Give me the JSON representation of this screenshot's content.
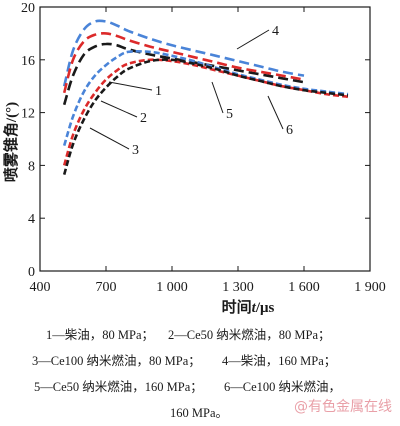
{
  "chart_data": {
    "type": "line",
    "xlabel_prefix": "时间",
    "xlabel_var": "t",
    "xlabel_unit": "/μs",
    "ylabel": "喷雾锥角/(°)",
    "xlim": [
      400,
      1900
    ],
    "ylim": [
      0,
      20
    ],
    "x_ticks": [
      400,
      700,
      1000,
      1300,
      1600,
      1900
    ],
    "x_tick_labels": [
      "400",
      "700",
      "1 000",
      "1 300",
      "1 600",
      "1 900"
    ],
    "y_ticks": [
      0,
      4,
      8,
      12,
      16,
      20
    ],
    "y_tick_labels": [
      "0",
      "4",
      "8",
      "12",
      "16",
      "20"
    ],
    "series": [
      {
        "name": "1",
        "color": "#1a1a1a",
        "style": "long-dash",
        "x": [
          510,
          550,
          600,
          650,
          700,
          750,
          800,
          900,
          1000,
          1100,
          1200,
          1300,
          1400,
          1500,
          1600
        ],
        "y": [
          12.6,
          14.8,
          16.4,
          17.0,
          17.2,
          17.1,
          16.8,
          16.4,
          16.1,
          15.8,
          15.5,
          15.2,
          14.9,
          14.6,
          14.3
        ]
      },
      {
        "name": "2",
        "color": "#4a84d8",
        "style": "dash",
        "x": [
          510,
          550,
          600,
          650,
          700,
          750,
          800,
          900,
          1000,
          1100,
          1200,
          1300,
          1400,
          1500,
          1600,
          1700,
          1800
        ],
        "y": [
          9.5,
          11.7,
          13.6,
          14.8,
          15.6,
          16.2,
          16.6,
          16.6,
          16.3,
          15.9,
          15.4,
          14.9,
          14.5,
          14.1,
          13.8,
          13.6,
          13.4
        ]
      },
      {
        "name": "3",
        "color": "#dc2a2a",
        "style": "dash",
        "x": [
          510,
          550,
          600,
          650,
          700,
          750,
          800,
          900,
          1000,
          1100,
          1200,
          1300,
          1400,
          1500,
          1600,
          1700,
          1800
        ],
        "y": [
          8.0,
          10.3,
          12.2,
          13.5,
          14.5,
          15.2,
          15.7,
          16.0,
          15.9,
          15.6,
          15.2,
          14.8,
          14.4,
          14.0,
          13.7,
          13.4,
          13.2
        ]
      },
      {
        "name": "4",
        "color": "#4a84d8",
        "style": "long-dash",
        "x": [
          510,
          550,
          600,
          650,
          700,
          750,
          800,
          900,
          1000,
          1100,
          1200,
          1300,
          1400,
          1500,
          1600
        ],
        "y": [
          14.0,
          16.7,
          18.3,
          18.9,
          18.9,
          18.6,
          18.2,
          17.6,
          17.1,
          16.7,
          16.3,
          15.9,
          15.5,
          15.1,
          14.8
        ]
      },
      {
        "name": "5",
        "color": "#dc2a2a",
        "style": "long-dash",
        "x": [
          510,
          550,
          600,
          650,
          700,
          750,
          800,
          900,
          1000,
          1100,
          1200,
          1300,
          1400,
          1500,
          1600
        ],
        "y": [
          13.5,
          16.0,
          17.4,
          17.9,
          18.0,
          17.8,
          17.5,
          17.0,
          16.6,
          16.2,
          15.8,
          15.4,
          15.1,
          14.8,
          14.5
        ]
      },
      {
        "name": "6",
        "color": "#1a1a1a",
        "style": "dash",
        "x": [
          510,
          550,
          600,
          650,
          700,
          750,
          800,
          900,
          1000,
          1100,
          1200,
          1300,
          1400,
          1500,
          1600,
          1700,
          1800
        ],
        "y": [
          7.3,
          9.6,
          11.5,
          12.9,
          13.9,
          14.7,
          15.3,
          15.9,
          16.0,
          15.7,
          15.3,
          14.8,
          14.4,
          14.0,
          13.7,
          13.5,
          13.3
        ]
      }
    ]
  },
  "caption": {
    "line1": [
      "1—柴油，80 MPa；",
      "2—Ce50 纳米燃油，80 MPa；"
    ],
    "line2": [
      "3—Ce100 纳米燃油，80 MPa；",
      "4—柴油，160 MPa；"
    ],
    "line3": [
      "5—Ce50 纳米燃油，160 MPa；",
      "6—Ce100 纳米燃油，"
    ],
    "line4": "160 MPa。"
  },
  "watermark": "@有色金属在线"
}
